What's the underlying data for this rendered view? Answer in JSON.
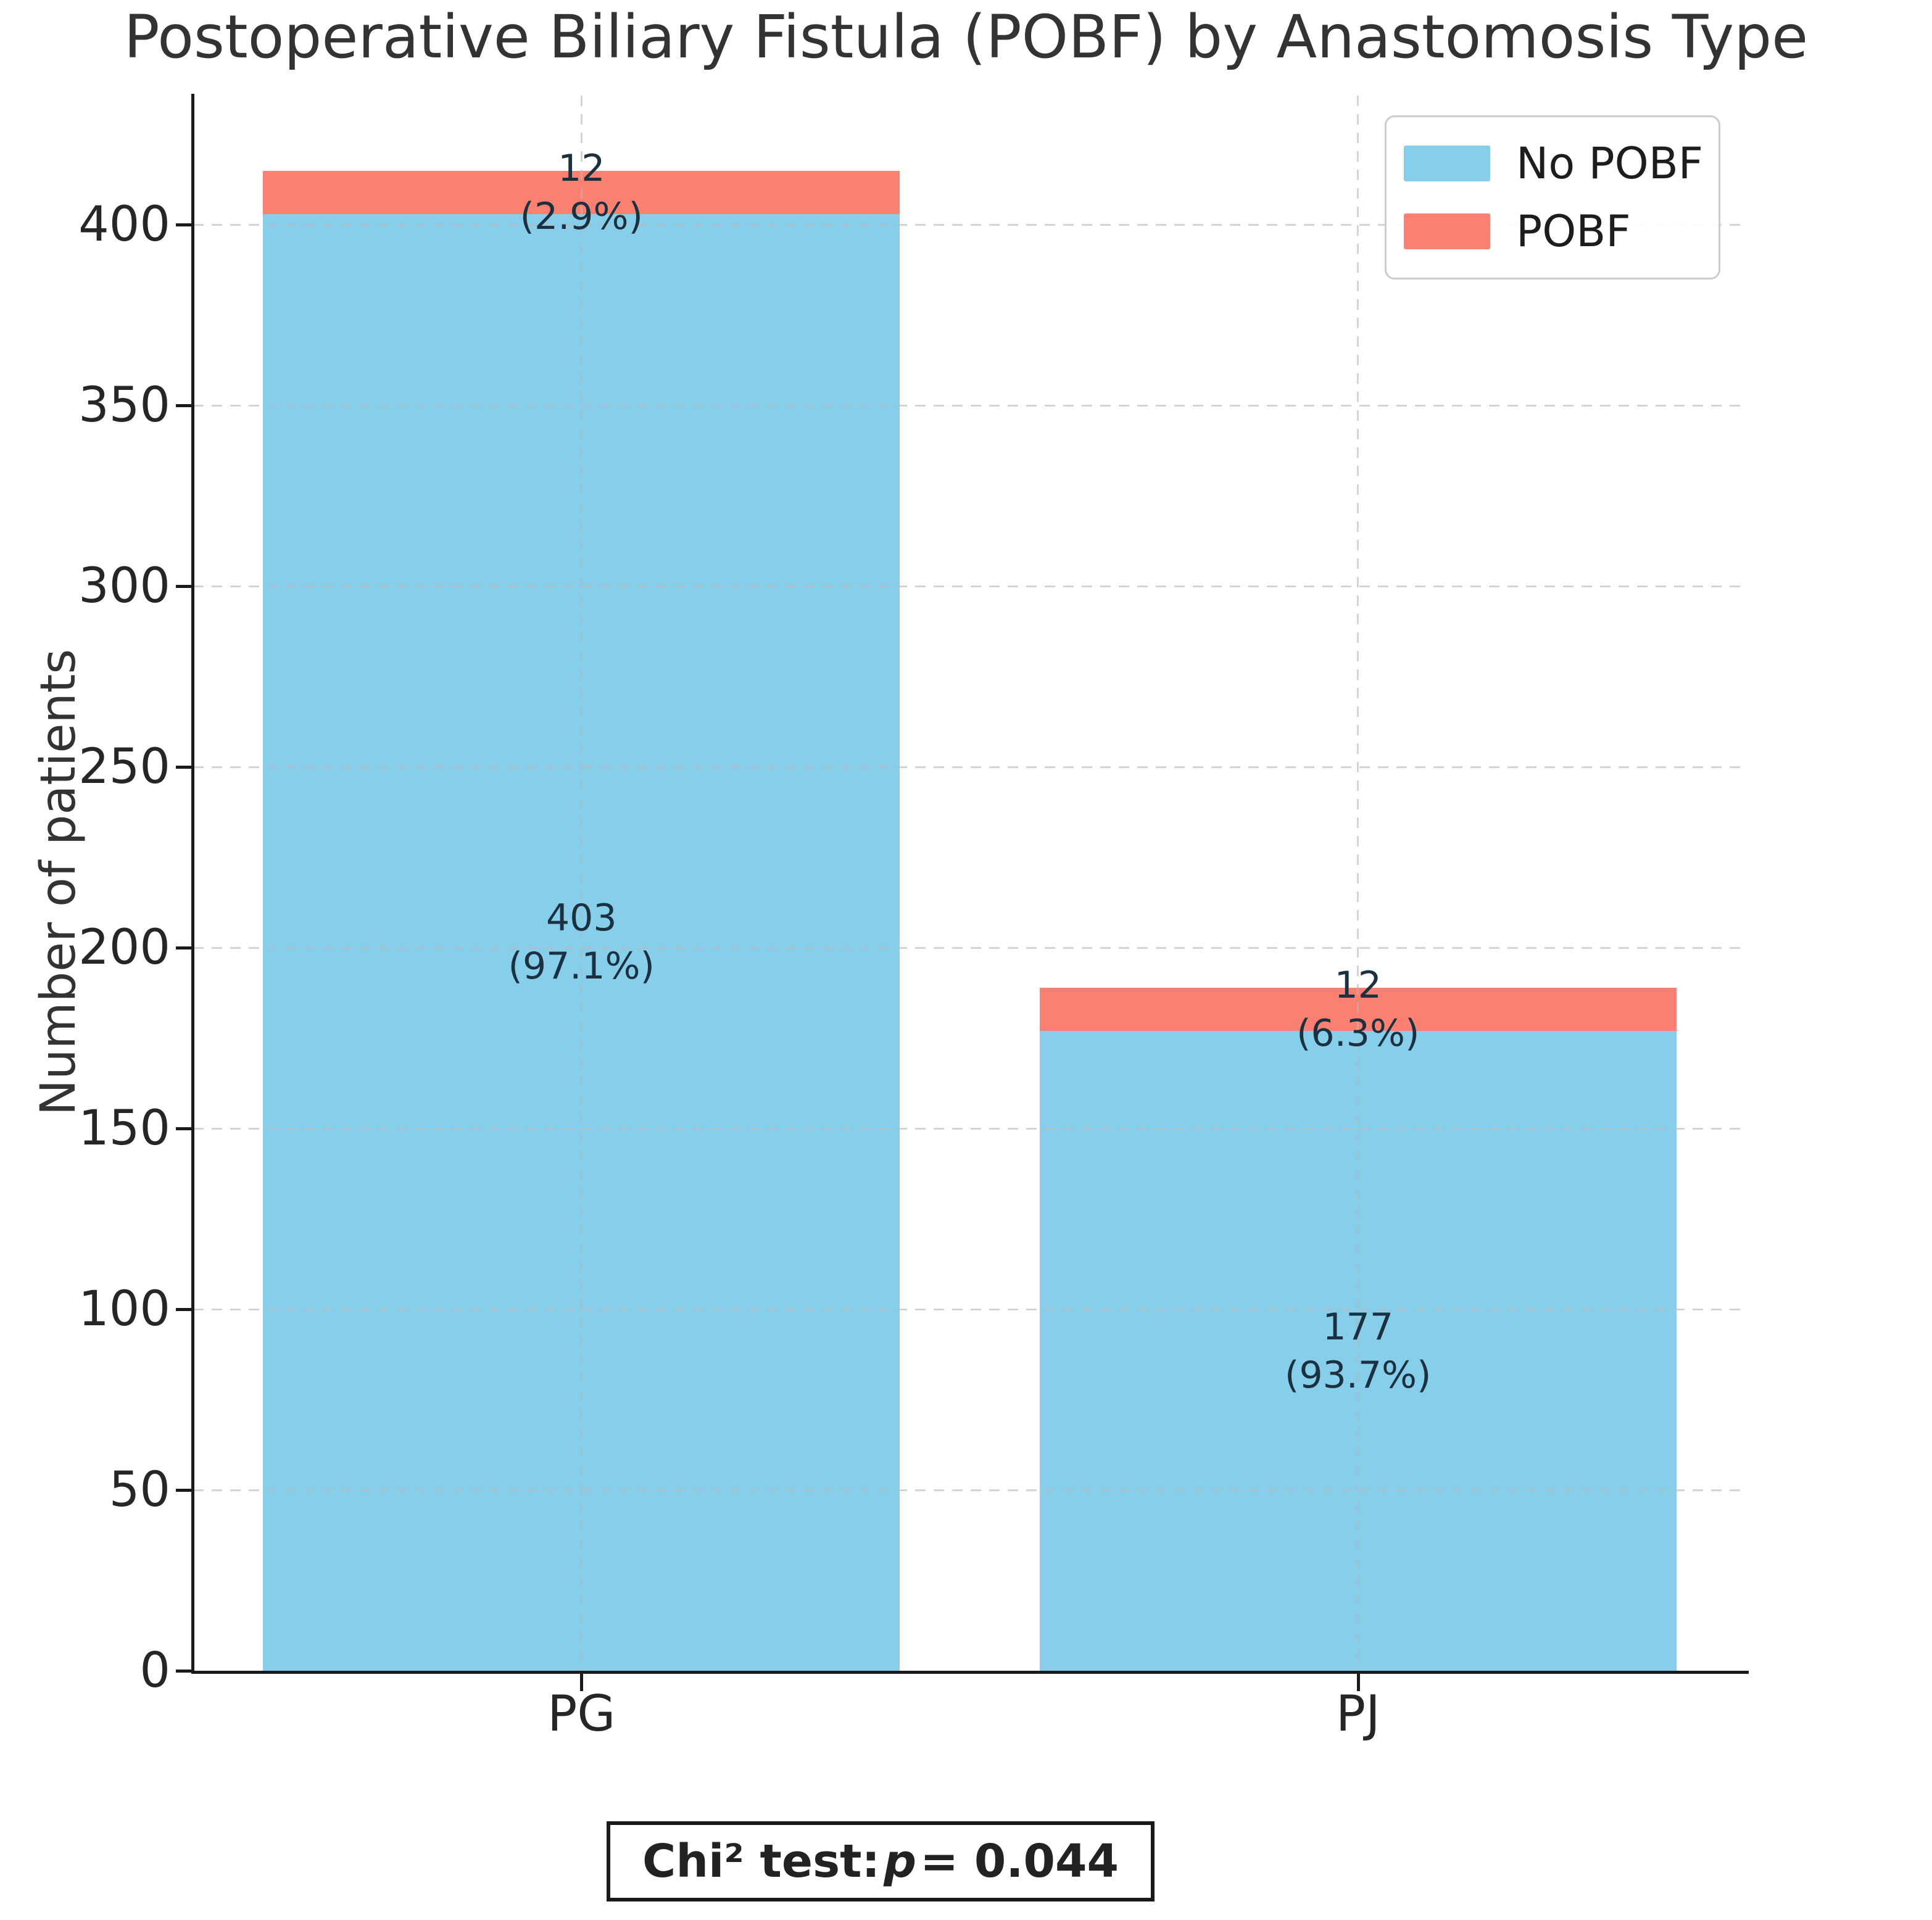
{
  "title": "Postoperative Biliary Fistula (POBF) by Anastomosis Type",
  "ylabel": "Number of patients",
  "legend": {
    "items": [
      {
        "label": "No POBF",
        "color": "#87CEEB"
      },
      {
        "label": "POBF",
        "color": "#FA8072"
      }
    ]
  },
  "annotation": {
    "prefix": "Chi² test: ",
    "p": "p",
    "rest": " = 0.044"
  },
  "chart_data": {
    "type": "bar",
    "stacked": true,
    "title": "Postoperative Biliary Fistula (POBF) by Anastomosis Type",
    "xlabel": "",
    "ylabel": "Number of patients",
    "categories": [
      "PG",
      "PJ"
    ],
    "series": [
      {
        "name": "No POBF",
        "color": "#87CEEB",
        "values": [
          403,
          177
        ],
        "labels": [
          {
            "count": "403",
            "pct": "(97.1%)"
          },
          {
            "count": "177",
            "pct": "(93.7%)"
          }
        ]
      },
      {
        "name": "POBF",
        "color": "#FA8072",
        "values": [
          12,
          12
        ],
        "labels": [
          {
            "count": "12",
            "pct": "(2.9%)"
          },
          {
            "count": "12",
            "pct": "(6.3%)"
          }
        ]
      }
    ],
    "totals": [
      415,
      189
    ],
    "ylim": [
      0,
      435.75
    ],
    "yticks": [
      0,
      50,
      100,
      150,
      200,
      250,
      300,
      350,
      400
    ],
    "xlim": [
      -0.5,
      1.5
    ],
    "bar_width": 0.82,
    "grid": true,
    "grid_style": "dashed",
    "legend_position": "upper right",
    "p_value_text": "Chi² test: p = 0.044"
  }
}
